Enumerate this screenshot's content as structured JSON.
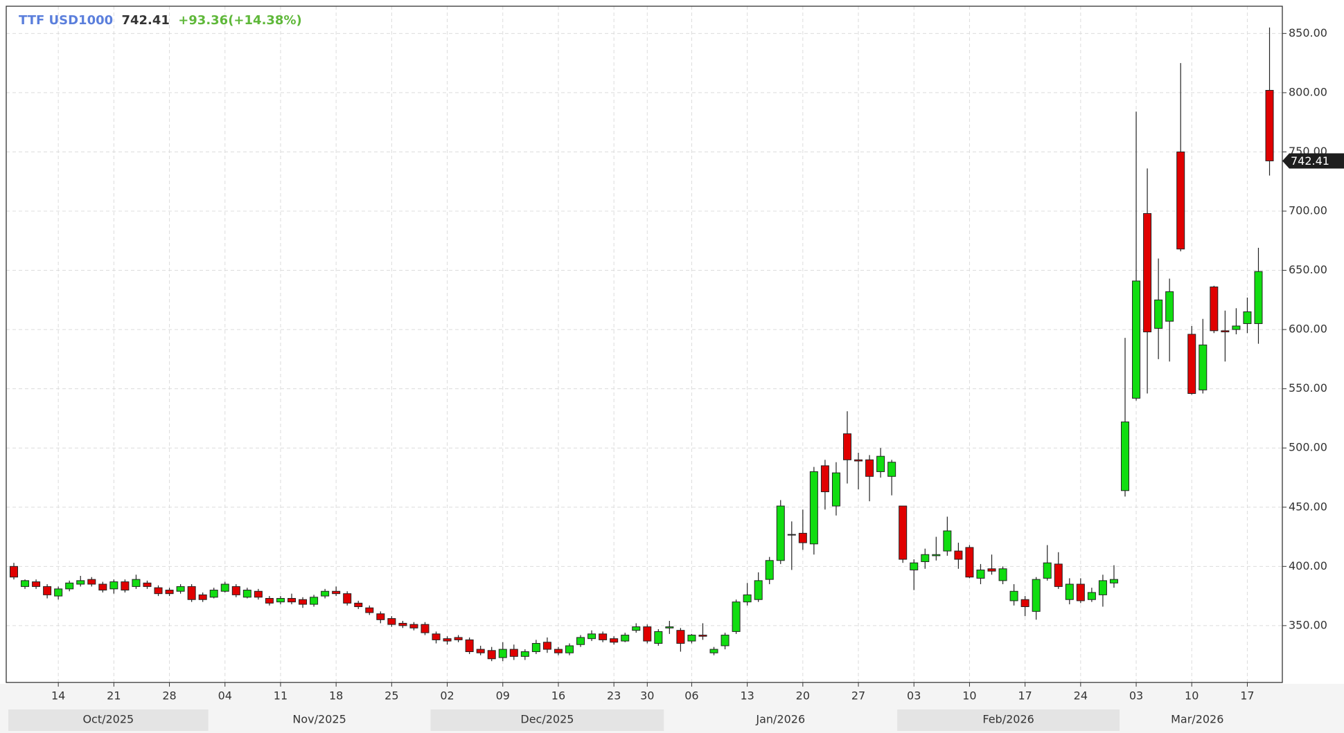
{
  "chart_data": {
    "type": "candlestick",
    "symbol": "TTF USD1000",
    "last_price": 742.41,
    "change": "+93.36(+14.38%)",
    "up_color": "#11dd11",
    "down_color": "#e00000",
    "grid": true,
    "categories": [
      "2025-10-08",
      "2025-10-09",
      "2025-10-10",
      "2025-10-13",
      "2025-10-14",
      "2025-10-15",
      "2025-10-16",
      "2025-10-17",
      "2025-10-20",
      "2025-10-21",
      "2025-10-22",
      "2025-10-23",
      "2025-10-24",
      "2025-10-27",
      "2025-10-28",
      "2025-10-29",
      "2025-10-30",
      "2025-10-31",
      "2025-11-03",
      "2025-11-04",
      "2025-11-05",
      "2025-11-06",
      "2025-11-07",
      "2025-11-10",
      "2025-11-11",
      "2025-11-12",
      "2025-11-13",
      "2025-11-14",
      "2025-11-17",
      "2025-11-18",
      "2025-11-19",
      "2025-11-20",
      "2025-11-21",
      "2025-11-24",
      "2025-11-25",
      "2025-11-26",
      "2025-11-27",
      "2025-11-28",
      "2025-12-01",
      "2025-12-02",
      "2025-12-03",
      "2025-12-04",
      "2025-12-05",
      "2025-12-08",
      "2025-12-09",
      "2025-12-10",
      "2025-12-11",
      "2025-12-12",
      "2025-12-15",
      "2025-12-16",
      "2025-12-17",
      "2025-12-18",
      "2025-12-19",
      "2025-12-22",
      "2025-12-23",
      "2025-12-24",
      "2025-12-29",
      "2025-12-30",
      "2025-12-31",
      "2026-01-02",
      "2026-01-05",
      "2026-01-06",
      "2026-01-07",
      "2026-01-08",
      "2026-01-09",
      "2026-01-12",
      "2026-01-13",
      "2026-01-14",
      "2026-01-15",
      "2026-01-16",
      "2026-01-19",
      "2026-01-20",
      "2026-01-21",
      "2026-01-22",
      "2026-01-23",
      "2026-01-26",
      "2026-01-27",
      "2026-01-28",
      "2026-01-29",
      "2026-01-30",
      "2026-02-02",
      "2026-02-03",
      "2026-02-04",
      "2026-02-05",
      "2026-02-06",
      "2026-02-09",
      "2026-02-10",
      "2026-02-11",
      "2026-02-12",
      "2026-02-13",
      "2026-02-16",
      "2026-02-17",
      "2026-02-18",
      "2026-02-19",
      "2026-02-20",
      "2026-02-23",
      "2026-02-24",
      "2026-02-25",
      "2026-02-26",
      "2026-02-27",
      "2026-03-02",
      "2026-03-03",
      "2026-03-04",
      "2026-03-05",
      "2026-03-06",
      "2026-03-09",
      "2026-03-10",
      "2026-03-11",
      "2026-03-12",
      "2026-03-13",
      "2026-03-16",
      "2026-03-17",
      "2026-03-18",
      "2026-03-19"
    ],
    "open": [
      400,
      383,
      387,
      383,
      375,
      381,
      385,
      389,
      385,
      381,
      387,
      383,
      386,
      382,
      380,
      379,
      383,
      376,
      374,
      379,
      383,
      374,
      379,
      373,
      370,
      373,
      372,
      368,
      375,
      379,
      377,
      369,
      365,
      360,
      356,
      352,
      351,
      351,
      343,
      339,
      340,
      338,
      330,
      329,
      323,
      330,
      324,
      328,
      336,
      330,
      327,
      334,
      339,
      343,
      339,
      337,
      346,
      349,
      335,
      348,
      346,
      337,
      342,
      327,
      333,
      345,
      370,
      372,
      389,
      405,
      427,
      428,
      419,
      485,
      451,
      512,
      490,
      490,
      480,
      476,
      451,
      397,
      404,
      409,
      413,
      413,
      416,
      390,
      398,
      388,
      371,
      372,
      362,
      390,
      402,
      372,
      385,
      372,
      376,
      386,
      464,
      542,
      698,
      601,
      607,
      750,
      596,
      549,
      636,
      599,
      600,
      605,
      605,
      802
    ],
    "high": [
      403,
      389,
      389,
      385,
      383,
      388,
      392,
      391,
      387,
      389,
      389,
      393,
      388,
      384,
      382,
      385,
      385,
      378,
      382,
      387,
      385,
      382,
      381,
      375,
      375,
      377,
      374,
      376,
      381,
      383,
      379,
      371,
      367,
      362,
      358,
      354,
      353,
      353,
      345,
      341,
      342,
      340,
      333,
      332,
      336,
      334,
      330,
      338,
      340,
      332,
      335,
      342,
      346,
      345,
      341,
      344,
      352,
      351,
      347,
      354,
      348,
      343,
      352,
      332,
      344,
      372,
      386,
      395,
      408,
      456,
      438,
      448,
      484,
      490,
      488,
      531,
      496,
      494,
      500,
      490,
      451,
      406,
      415,
      425,
      442,
      420,
      418,
      402,
      410,
      400,
      385,
      375,
      391,
      418,
      412,
      390,
      390,
      382,
      393,
      401,
      593,
      784,
      736,
      660,
      643,
      825,
      603,
      609,
      637,
      616,
      618,
      627,
      669,
      855
    ],
    "low": [
      389,
      381,
      381,
      373,
      372,
      379,
      383,
      383,
      378,
      377,
      378,
      381,
      381,
      375,
      375,
      377,
      370,
      370,
      373,
      378,
      374,
      373,
      372,
      367,
      368,
      368,
      365,
      366,
      373,
      375,
      367,
      364,
      359,
      352,
      349,
      348,
      346,
      342,
      335,
      334,
      336,
      326,
      325,
      320,
      320,
      321,
      321,
      326,
      327,
      325,
      325,
      332,
      337,
      336,
      334,
      336,
      344,
      335,
      333,
      343,
      328,
      335,
      338,
      325,
      330,
      343,
      367,
      370,
      385,
      402,
      397,
      414,
      410,
      448,
      443,
      470,
      465,
      455,
      475,
      460,
      403,
      380,
      398,
      405,
      409,
      398,
      390,
      385,
      393,
      385,
      367,
      358,
      355,
      388,
      381,
      368,
      369,
      370,
      366,
      382,
      459,
      540,
      546,
      575,
      573,
      666,
      545,
      546,
      597,
      573,
      596,
      597,
      588,
      730
    ],
    "close": [
      391,
      388,
      383,
      376,
      381,
      386,
      388,
      385,
      380,
      387,
      380,
      389,
      383,
      377,
      377,
      383,
      372,
      372,
      380,
      385,
      376,
      380,
      374,
      369,
      373,
      370,
      368,
      374,
      379,
      377,
      369,
      366,
      361,
      355,
      351,
      350,
      348,
      344,
      338,
      337,
      338,
      328,
      327,
      322,
      330,
      324,
      328,
      335,
      330,
      327,
      333,
      340,
      343,
      338,
      336,
      342,
      349,
      337,
      345,
      349,
      335,
      342,
      341,
      330,
      342,
      370,
      376,
      388,
      405,
      451,
      427,
      420,
      480,
      463,
      479,
      490,
      489,
      476,
      493,
      488,
      406,
      403,
      410,
      410,
      430,
      406,
      391,
      397,
      396,
      398,
      379,
      366,
      389,
      403,
      383,
      385,
      371,
      378,
      388,
      389,
      522,
      641,
      598,
      625,
      632,
      668,
      546,
      587,
      599,
      598,
      603,
      615,
      649,
      742.41
    ],
    "ylim": [
      302,
      873
    ],
    "yticks": [
      {
        "value": 350,
        "label": "350.00"
      },
      {
        "value": 400,
        "label": "400.00"
      },
      {
        "value": 450,
        "label": "450.00"
      },
      {
        "value": 500,
        "label": "500.00"
      },
      {
        "value": 550,
        "label": "550.00"
      },
      {
        "value": 600,
        "label": "600.00"
      },
      {
        "value": 650,
        "label": "650.00"
      },
      {
        "value": 700,
        "label": "700.00"
      },
      {
        "value": 750,
        "label": "750.00"
      },
      {
        "value": 800,
        "label": "800.00"
      },
      {
        "value": 850,
        "label": "850.00"
      }
    ],
    "xticks": [
      {
        "value": "2025-10-14",
        "label": "14"
      },
      {
        "value": "2025-10-21",
        "label": "21"
      },
      {
        "value": "2025-10-28",
        "label": "28"
      },
      {
        "value": "2025-11-04",
        "label": "04"
      },
      {
        "value": "2025-11-11",
        "label": "11"
      },
      {
        "value": "2025-11-18",
        "label": "18"
      },
      {
        "value": "2025-11-25",
        "label": "25"
      },
      {
        "value": "2025-12-02",
        "label": "02"
      },
      {
        "value": "2025-12-09",
        "label": "09"
      },
      {
        "value": "2025-12-16",
        "label": "16"
      },
      {
        "value": "2025-12-23",
        "label": "23"
      },
      {
        "value": "2025-12-30",
        "label": "30"
      },
      {
        "value": "2026-01-06",
        "label": "06"
      },
      {
        "value": "2026-01-13",
        "label": "13"
      },
      {
        "value": "2026-01-20",
        "label": "20"
      },
      {
        "value": "2026-01-27",
        "label": "27"
      },
      {
        "value": "2026-02-03",
        "label": "03"
      },
      {
        "value": "2026-02-10",
        "label": "10"
      },
      {
        "value": "2026-02-17",
        "label": "17"
      },
      {
        "value": "2026-02-24",
        "label": "24"
      },
      {
        "value": "2026-03-03",
        "label": "03"
      },
      {
        "value": "2026-03-10",
        "label": "10"
      },
      {
        "value": "2026-03-17",
        "label": "17"
      }
    ],
    "months": [
      "Oct/2025",
      "Nov/2025",
      "Dec/2025",
      "Jan/2026",
      "Feb/2026",
      "Mar/2026"
    ]
  }
}
